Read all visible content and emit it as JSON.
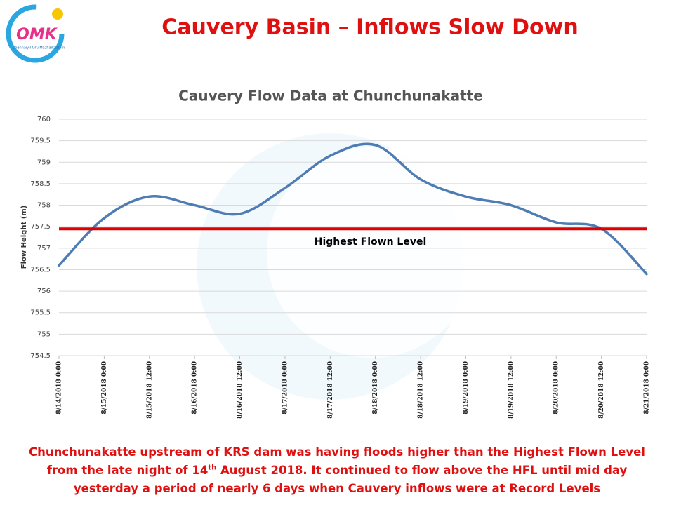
{
  "slide": {
    "title": "Cauvery Basin – Inflows Slow Down",
    "logo_text": "OMK",
    "logo_subtitle": "Chennaiyil Oru Mazhaikaalam",
    "caption": [
      "Chunchunakatte  upstream of KRS dam was having floods higher than the Highest Flown Level from the late night of 14",
      "th",
      " August 2018.  It continued to flow above the HFL until mid day yesterday a period of nearly 6 days when Cauvery inflows were at Record Levels"
    ]
  },
  "chart_data": {
    "type": "line",
    "title": "Cauvery Flow Data at Chunchunakatte",
    "y_label": "Flow Height (m)",
    "categories": [
      "8/14/2018 0:00",
      "8/15/2018 0:00",
      "8/15/2018 12:00",
      "8/16/2018 0:00",
      "8/16/2018 12:00",
      "8/17/2018 0:00",
      "8/17/2018 12:00",
      "8/18/2018 0:00",
      "8/18/2018 12:00",
      "8/19/2018 0:00",
      "8/19/2018 12:00",
      "8/20/2018 0:00",
      "8/20/2018 12:00",
      "8/21/2018 0:00"
    ],
    "series": [
      {
        "name": "Flow Height",
        "color": "#4f7db3",
        "values": [
          756.6,
          757.7,
          758.2,
          758.0,
          757.8,
          758.4,
          759.15,
          759.4,
          758.6,
          758.2,
          758.0,
          757.6,
          757.45,
          756.4
        ]
      }
    ],
    "reference": {
      "value": 757.45,
      "label": "Highest Flown Level",
      "color": "#e00000"
    },
    "ylim": [
      754.5,
      760
    ],
    "yticks": [
      754.5,
      755,
      755.5,
      756,
      756.5,
      757,
      757.5,
      758,
      758.5,
      759,
      759.5,
      760
    ],
    "grid": true
  }
}
